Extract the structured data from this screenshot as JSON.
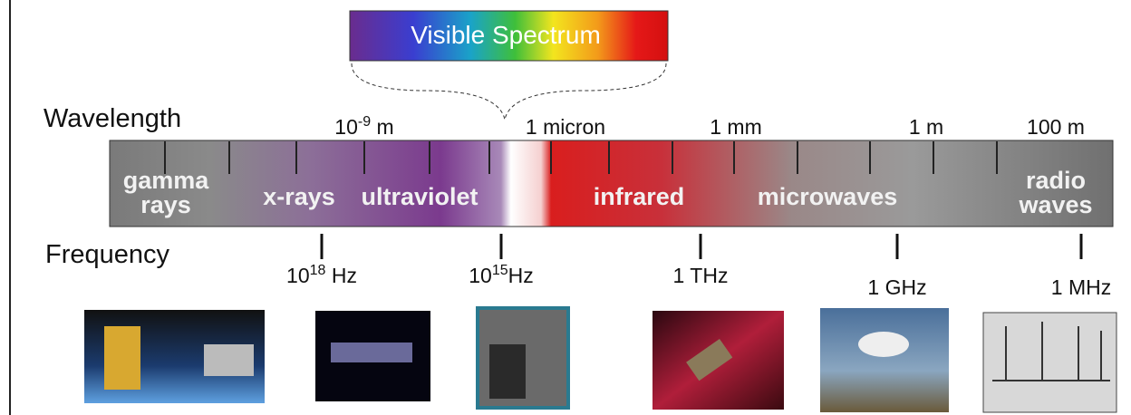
{
  "visible_label": "Visible Spectrum",
  "wavelength_title": "Wavelength",
  "frequency_title": "Frequency",
  "wavelength_labels": [
    {
      "base": "10",
      "exp": "-9",
      "unit": " m"
    },
    {
      "text": "1 micron"
    },
    {
      "text": "1 mm"
    },
    {
      "text": "1 m"
    },
    {
      "text": "100 m"
    }
  ],
  "bands": [
    {
      "lines": [
        "gamma",
        "rays"
      ]
    },
    {
      "lines": [
        "x-rays"
      ]
    },
    {
      "lines": [
        "ultraviolet"
      ]
    },
    {
      "lines": [
        "infrared"
      ]
    },
    {
      "lines": [
        "microwaves"
      ]
    },
    {
      "lines": [
        "radio",
        "waves"
      ]
    }
  ],
  "frequency_labels": [
    {
      "base": "10",
      "exp": "18",
      "unit": " Hz"
    },
    {
      "base": "10",
      "exp": "15",
      "unit": "Hz"
    },
    {
      "text": "1 THz"
    },
    {
      "text": "1 GHz"
    },
    {
      "text": "1 MHz"
    }
  ]
}
